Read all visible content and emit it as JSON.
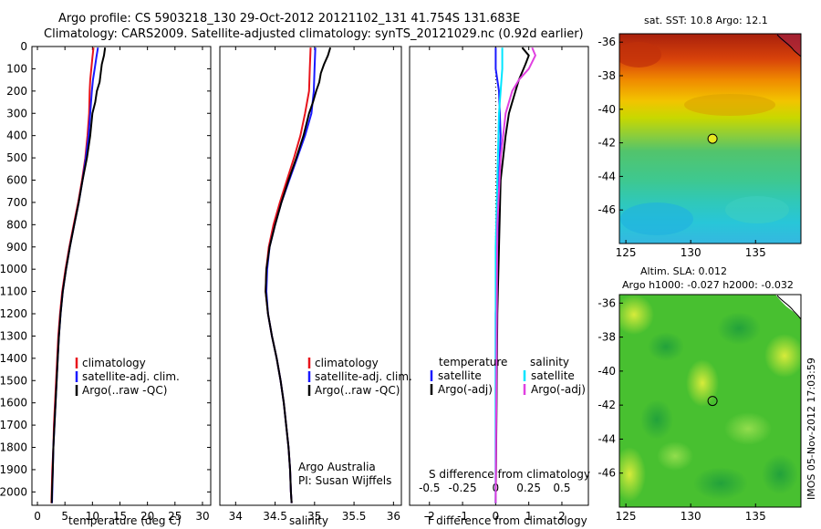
{
  "header": {
    "line1": "Argo profile: CS 5903218_130 29-Oct-2012 20121102_131 41.754S 131.683E",
    "line2": "Climatology: CARS2009. Satellite-adjusted climatology: synTS_20121029.nc (0.92d earlier)"
  },
  "side_label": "IMOS 05-Nov-2012 17:03:59",
  "colors": {
    "climatology": "#e8141c",
    "satellite": "#1a1aff",
    "argo": "#000000",
    "sal_satellite": "#00e5ff",
    "sal_argo": "#e040e0"
  },
  "chart_data": [
    {
      "type": "line",
      "id": "temperature",
      "xlabel": "temperature (deg C)",
      "ylabel": "",
      "xlim": [
        -1,
        31.5
      ],
      "ylim": [
        2060,
        0
      ],
      "xticks": [
        0,
        5,
        10,
        15,
        20,
        25,
        30
      ],
      "yticks": [
        0,
        100,
        200,
        300,
        400,
        500,
        600,
        700,
        800,
        900,
        1000,
        1100,
        1200,
        1300,
        1400,
        1500,
        1600,
        1700,
        1800,
        1900,
        2000
      ],
      "legend": [
        "climatology",
        "satellite-adj. clim.",
        "Argo(..raw -QC)"
      ],
      "series": [
        {
          "name": "climatology",
          "points": [
            [
              10.2,
              5
            ],
            [
              10.0,
              50
            ],
            [
              9.8,
              100
            ],
            [
              9.6,
              150
            ],
            [
              9.5,
              200
            ],
            [
              9.4,
              300
            ],
            [
              9.1,
              400
            ],
            [
              8.7,
              500
            ],
            [
              8.1,
              600
            ],
            [
              7.4,
              700
            ],
            [
              6.6,
              800
            ],
            [
              5.8,
              900
            ],
            [
              5.1,
              1000
            ],
            [
              4.5,
              1100
            ],
            [
              4.1,
              1200
            ],
            [
              3.8,
              1300
            ],
            [
              3.6,
              1400
            ],
            [
              3.4,
              1500
            ],
            [
              3.2,
              1600
            ],
            [
              3.0,
              1700
            ],
            [
              2.9,
              1800
            ],
            [
              2.7,
              1900
            ],
            [
              2.6,
              2000
            ],
            [
              2.55,
              2050
            ]
          ]
        },
        {
          "name": "satellite-adj. clim.",
          "points": [
            [
              11.0,
              5
            ],
            [
              10.7,
              50
            ],
            [
              10.4,
              100
            ],
            [
              10.1,
              150
            ],
            [
              9.9,
              200
            ],
            [
              9.6,
              300
            ],
            [
              9.3,
              400
            ],
            [
              8.8,
              500
            ],
            [
              8.2,
              600
            ],
            [
              7.5,
              700
            ],
            [
              6.7,
              800
            ],
            [
              5.9,
              900
            ],
            [
              5.2,
              1000
            ],
            [
              4.6,
              1100
            ],
            [
              4.2,
              1200
            ],
            [
              3.9,
              1300
            ],
            [
              3.7,
              1400
            ],
            [
              3.5,
              1500
            ],
            [
              3.3,
              1600
            ],
            [
              3.1,
              1700
            ],
            [
              2.9,
              1800
            ],
            [
              2.8,
              1900
            ],
            [
              2.7,
              2000
            ],
            [
              2.65,
              2050
            ]
          ]
        },
        {
          "name": "Argo(..raw -QC)",
          "points": [
            [
              12.3,
              5
            ],
            [
              12.1,
              40
            ],
            [
              11.7,
              80
            ],
            [
              11.5,
              120
            ],
            [
              11.3,
              160
            ],
            [
              10.8,
              200
            ],
            [
              10.5,
              250
            ],
            [
              10.0,
              300
            ],
            [
              9.6,
              400
            ],
            [
              9.0,
              500
            ],
            [
              8.2,
              600
            ],
            [
              7.5,
              700
            ],
            [
              6.7,
              800
            ],
            [
              5.9,
              900
            ],
            [
              5.2,
              1000
            ],
            [
              4.6,
              1100
            ],
            [
              4.2,
              1200
            ],
            [
              3.9,
              1300
            ],
            [
              3.7,
              1400
            ],
            [
              3.5,
              1500
            ],
            [
              3.3,
              1600
            ],
            [
              3.1,
              1700
            ],
            [
              2.9,
              1800
            ],
            [
              2.8,
              1900
            ],
            [
              2.65,
              2000
            ],
            [
              2.6,
              2050
            ]
          ]
        }
      ]
    },
    {
      "type": "line",
      "id": "salinity",
      "xlabel": "salinity",
      "xlim": [
        33.8,
        36.1
      ],
      "ylim": [
        2060,
        0
      ],
      "xticks": [
        34,
        34.5,
        35,
        35.5,
        36
      ],
      "xtick_labels": [
        "34",
        "34.5",
        "35",
        "35.5",
        "36"
      ],
      "legend": [
        "climatology",
        "satellite-adj. clim.",
        "Argo(..raw -QC)"
      ],
      "annotation": [
        "Argo Australia",
        "PI: Susan Wijffels"
      ],
      "series": [
        {
          "name": "climatology",
          "points": [
            [
              34.95,
              5
            ],
            [
              34.94,
              100
            ],
            [
              34.93,
              200
            ],
            [
              34.88,
              300
            ],
            [
              34.82,
              400
            ],
            [
              34.74,
              500
            ],
            [
              34.65,
              600
            ],
            [
              34.56,
              700
            ],
            [
              34.48,
              800
            ],
            [
              34.42,
              900
            ],
            [
              34.39,
              1000
            ],
            [
              34.38,
              1100
            ],
            [
              34.41,
              1200
            ],
            [
              34.46,
              1300
            ],
            [
              34.52,
              1400
            ],
            [
              34.57,
              1500
            ],
            [
              34.61,
              1600
            ],
            [
              34.64,
              1700
            ],
            [
              34.67,
              1800
            ],
            [
              34.69,
              1900
            ],
            [
              34.7,
              2000
            ],
            [
              34.71,
              2050
            ]
          ]
        },
        {
          "name": "satellite-adj. clim.",
          "points": [
            [
              35.01,
              5
            ],
            [
              35.0,
              100
            ],
            [
              34.99,
              200
            ],
            [
              34.96,
              300
            ],
            [
              34.88,
              400
            ],
            [
              34.78,
              500
            ],
            [
              34.68,
              600
            ],
            [
              34.58,
              700
            ],
            [
              34.5,
              800
            ],
            [
              34.43,
              900
            ],
            [
              34.4,
              1000
            ],
            [
              34.39,
              1100
            ],
            [
              34.41,
              1200
            ],
            [
              34.46,
              1300
            ],
            [
              34.52,
              1400
            ],
            [
              34.57,
              1500
            ],
            [
              34.61,
              1600
            ],
            [
              34.64,
              1700
            ],
            [
              34.67,
              1800
            ],
            [
              34.69,
              1900
            ],
            [
              34.7,
              2000
            ],
            [
              34.71,
              2050
            ]
          ]
        },
        {
          "name": "Argo(..raw -QC)",
          "points": [
            [
              35.2,
              5
            ],
            [
              35.17,
              40
            ],
            [
              35.12,
              80
            ],
            [
              35.08,
              120
            ],
            [
              35.06,
              160
            ],
            [
              35.02,
              200
            ],
            [
              34.98,
              250
            ],
            [
              34.93,
              300
            ],
            [
              34.86,
              400
            ],
            [
              34.77,
              500
            ],
            [
              34.67,
              600
            ],
            [
              34.58,
              700
            ],
            [
              34.5,
              800
            ],
            [
              34.43,
              900
            ],
            [
              34.39,
              1000
            ],
            [
              34.38,
              1100
            ],
            [
              34.41,
              1200
            ],
            [
              34.46,
              1300
            ],
            [
              34.52,
              1400
            ],
            [
              34.57,
              1500
            ],
            [
              34.61,
              1600
            ],
            [
              34.64,
              1700
            ],
            [
              34.67,
              1800
            ],
            [
              34.69,
              1900
            ],
            [
              34.7,
              2000
            ],
            [
              34.71,
              2050
            ]
          ]
        }
      ]
    },
    {
      "type": "line",
      "id": "difference",
      "xlabel": "T difference from climatology",
      "top_label": "S difference from climatology",
      "xlim": [
        -2.6,
        2.8
      ],
      "ylim": [
        2060,
        0
      ],
      "xticks": [
        -2,
        -1,
        0,
        1,
        2
      ],
      "top_ticks": [
        -0.5,
        -0.25,
        0,
        0.25,
        0.5
      ],
      "top_tick_labels": [
        "-0.5",
        "-0.25",
        "0",
        "0.25",
        "0.5"
      ],
      "legend_headers": [
        "temperature",
        "salinity"
      ],
      "legend": [
        "satellite",
        "Argo(-adj)",
        "satellite",
        "Argo(-adj)"
      ],
      "series": [
        {
          "name": "satellite",
          "points": [
            [
              0.0,
              5
            ],
            [
              0.0,
              100
            ],
            [
              0.1,
              200
            ],
            [
              0.15,
              400
            ],
            [
              0.1,
              600
            ],
            [
              0.05,
              900
            ],
            [
              0.0,
              1200
            ],
            [
              0.0,
              2050
            ]
          ]
        },
        {
          "name": "Argo(-adj)",
          "points": [
            [
              0.8,
              5
            ],
            [
              1.0,
              40
            ],
            [
              0.9,
              80
            ],
            [
              0.7,
              150
            ],
            [
              0.6,
              200
            ],
            [
              0.4,
              300
            ],
            [
              0.3,
              400
            ],
            [
              0.15,
              600
            ],
            [
              0.1,
              900
            ],
            [
              0.05,
              1200
            ],
            [
              0.0,
              2050
            ]
          ]
        },
        {
          "name": "satellite",
          "points": [
            [
              0.2,
              5
            ],
            [
              0.2,
              100
            ],
            [
              0.1,
              300
            ],
            [
              0.05,
              600
            ],
            [
              0.0,
              900
            ],
            [
              0.0,
              2050
            ]
          ]
        },
        {
          "name": "Argo(-adj)",
          "points": [
            [
              1.1,
              5
            ],
            [
              1.2,
              40
            ],
            [
              1.0,
              100
            ],
            [
              0.7,
              150
            ],
            [
              0.5,
              200
            ],
            [
              0.3,
              300
            ],
            [
              0.15,
              500
            ],
            [
              0.05,
              800
            ],
            [
              0.0,
              2050
            ]
          ]
        }
      ]
    }
  ],
  "maps": [
    {
      "id": "sst-map",
      "title": "sat. SST: 10.8 Argo: 12.1",
      "xticks": [
        125,
        130,
        135
      ],
      "yticks": [
        -36,
        -38,
        -40,
        -42,
        -44,
        -46
      ],
      "xlim": [
        124.5,
        138.5
      ],
      "ylim": [
        -48,
        -35.5
      ],
      "marker": [
        131.683,
        -41.754
      ]
    },
    {
      "id": "sla-map",
      "title_lines": [
        "Altim. SLA: 0.012",
        "Argo h1000: -0.027 h2000: -0.032"
      ],
      "xticks": [
        125,
        130,
        135
      ],
      "yticks": [
        -36,
        -38,
        -40,
        -42,
        -44,
        -46
      ],
      "xlim": [
        124.5,
        138.5
      ],
      "ylim": [
        -48,
        -35.5
      ],
      "marker": [
        131.683,
        -41.754
      ]
    }
  ]
}
